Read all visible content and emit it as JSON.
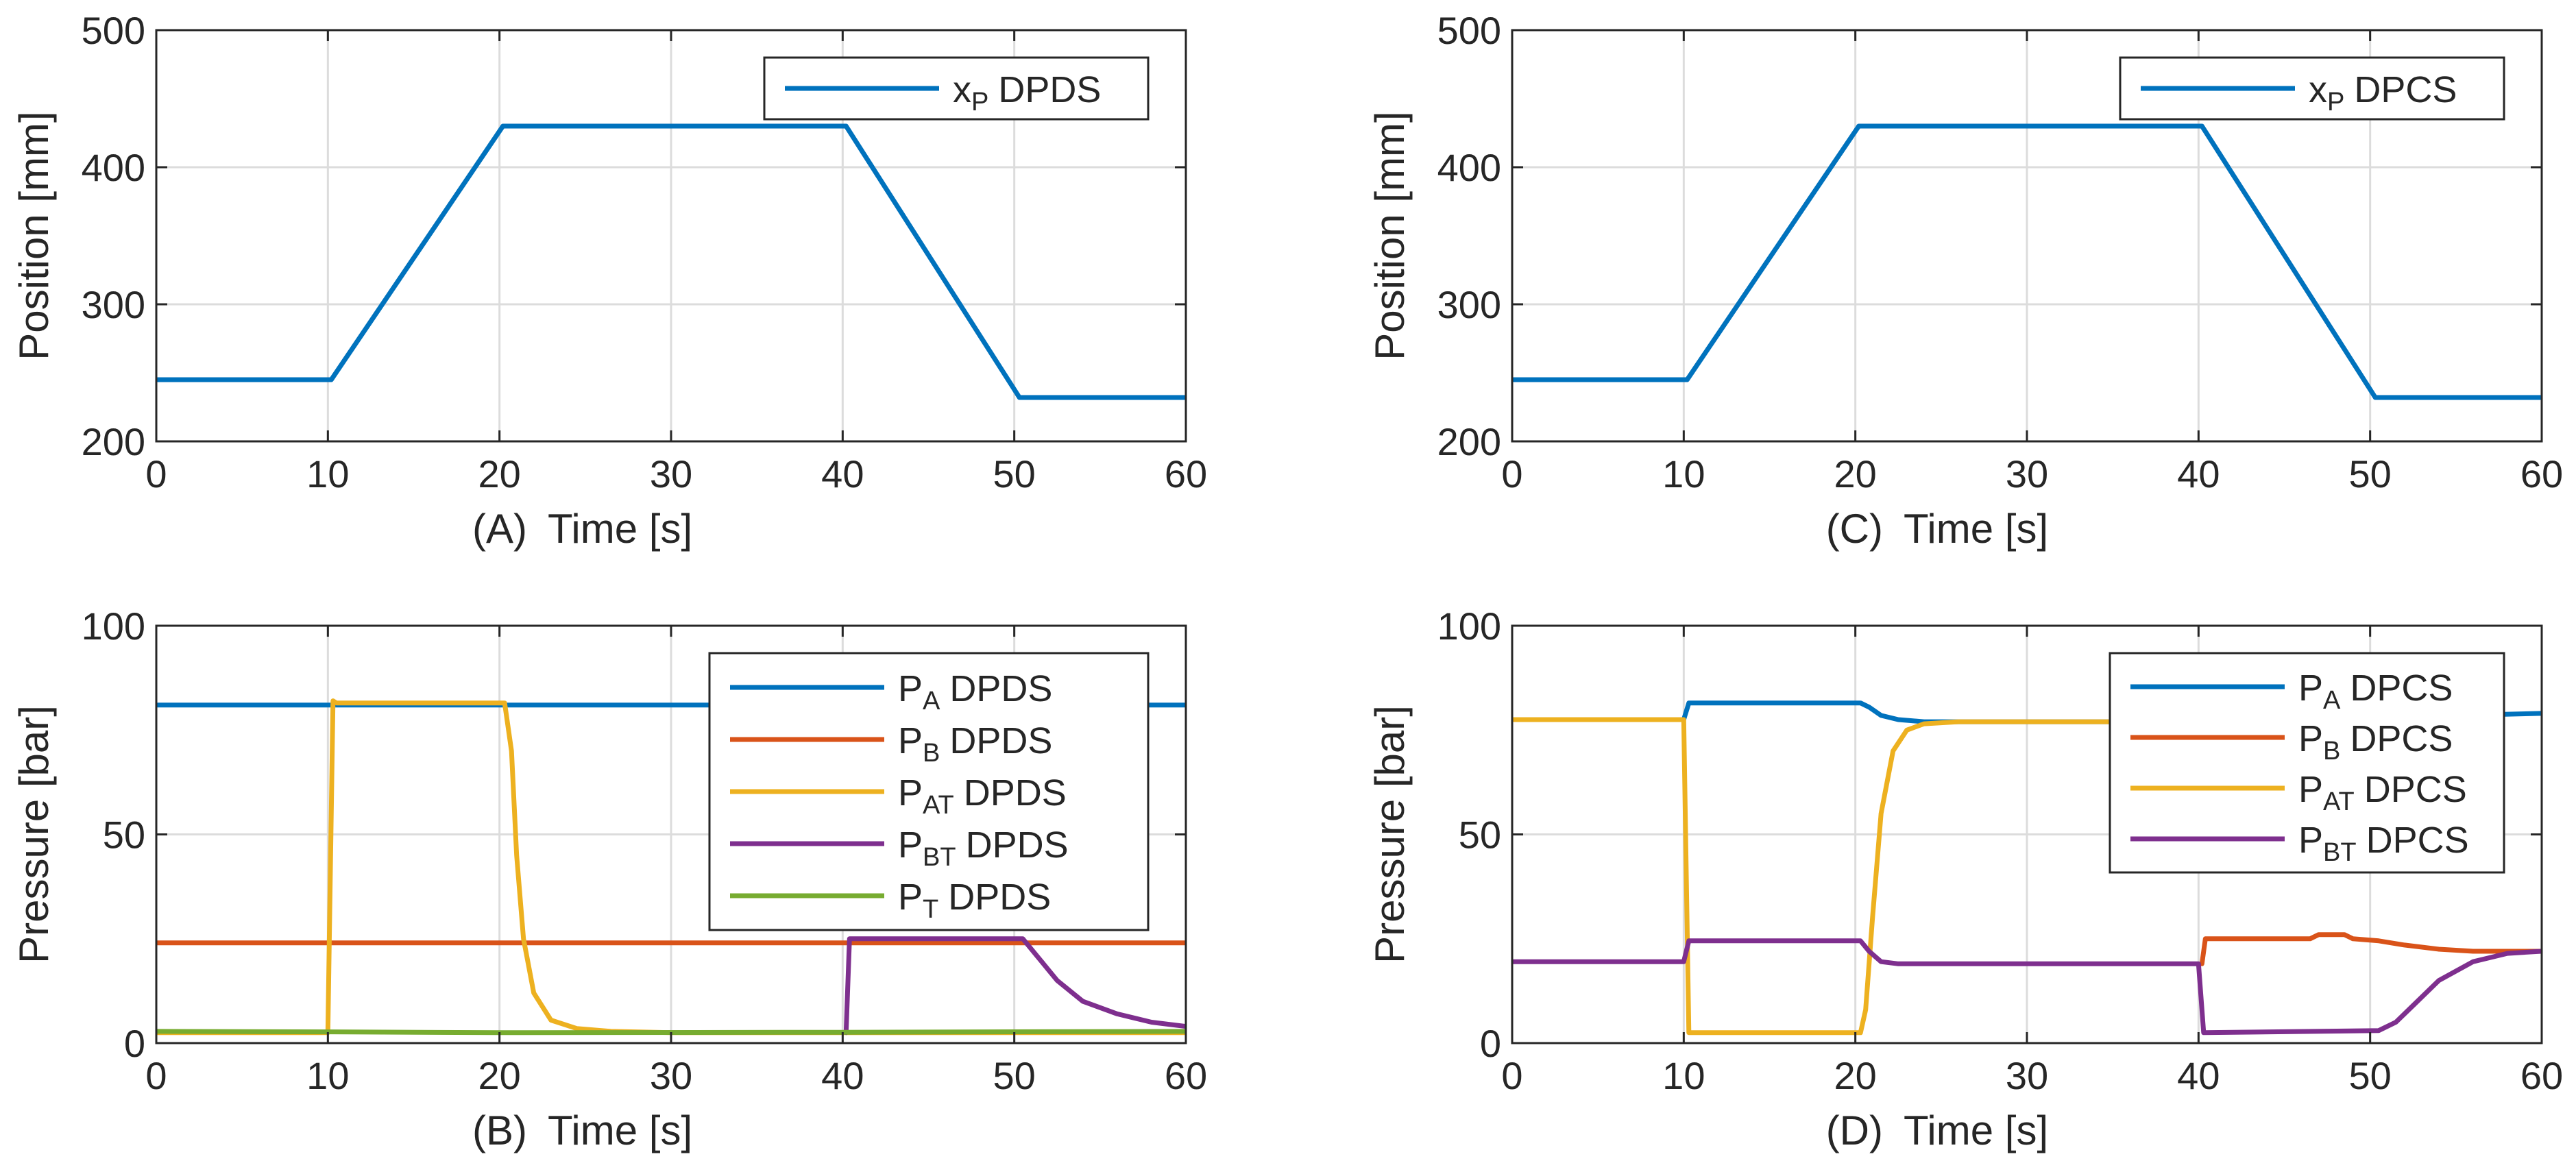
{
  "colors": {
    "blue": "#0072BD",
    "orange": "#D95319",
    "yellow": "#EDB120",
    "purple": "#7E2F8E",
    "green": "#77AC30",
    "grid": "#dcdcdc",
    "axis": "#262626"
  },
  "chart_data": [
    {
      "id": "A",
      "type": "line",
      "panel_label": "(A)",
      "xlabel": "Time [s]",
      "ylabel": "Position [mm]",
      "xlim": [
        0,
        60
      ],
      "ylim": [
        200,
        500
      ],
      "xticks": [
        0,
        10,
        20,
        30,
        40,
        50,
        60
      ],
      "yticks": [
        200,
        300,
        400,
        500
      ],
      "grid": true,
      "legend_position": "top-right",
      "series": [
        {
          "name": "x_P DPDS",
          "sym": "x",
          "sub": "P",
          "suffix": "DPDS",
          "color": "#0072BD",
          "x": [
            0,
            10.2,
            20.2,
            40.2,
            50.3,
            60
          ],
          "y": [
            245,
            245,
            430,
            430,
            232,
            232
          ]
        }
      ]
    },
    {
      "id": "B",
      "type": "line",
      "panel_label": "(B)",
      "xlabel": "Time [s]",
      "ylabel": "Pressure [bar]",
      "xlim": [
        0,
        60
      ],
      "ylim": [
        0,
        100
      ],
      "xticks": [
        0,
        10,
        20,
        30,
        40,
        50,
        60
      ],
      "yticks": [
        0,
        50,
        100
      ],
      "grid": true,
      "legend_position": "top-right",
      "series": [
        {
          "name": "P_A DPDS",
          "sym": "P",
          "sub": "A",
          "suffix": "DPDS",
          "color": "#0072BD",
          "x": [
            0,
            60
          ],
          "y": [
            81,
            81
          ]
        },
        {
          "name": "P_B DPDS",
          "sym": "P",
          "sub": "B",
          "suffix": "DPDS",
          "color": "#D95319",
          "x": [
            0,
            60
          ],
          "y": [
            24,
            24
          ]
        },
        {
          "name": "P_AT DPDS",
          "sym": "P",
          "sub": "AT",
          "suffix": "DPDS",
          "color": "#EDB120",
          "x": [
            0,
            10.0,
            10.3,
            10.5,
            20.3,
            20.7,
            21.0,
            21.4,
            22.0,
            23.0,
            24.5,
            26.5,
            30,
            40,
            60
          ],
          "y": [
            2.5,
            2.5,
            82,
            81.5,
            81.5,
            70,
            45,
            25,
            12,
            5.5,
            3.5,
            2.8,
            2.5,
            2.5,
            2.5
          ]
        },
        {
          "name": "P_BT DPDS",
          "sym": "P",
          "sub": "BT",
          "suffix": "DPDS",
          "color": "#7E2F8E",
          "x": [
            40.2,
            40.4,
            50.5,
            51.5,
            52.5,
            54,
            56,
            58,
            60
          ],
          "y": [
            2.5,
            25,
            25,
            20,
            15,
            10,
            7,
            5,
            4
          ]
        },
        {
          "name": "P_T DPDS",
          "sym": "P",
          "sub": "T",
          "suffix": "DPDS",
          "color": "#77AC30",
          "x": [
            0,
            10,
            20,
            40,
            60
          ],
          "y": [
            2.8,
            2.7,
            2.5,
            2.6,
            2.8
          ]
        }
      ]
    },
    {
      "id": "C",
      "type": "line",
      "panel_label": "(C)",
      "xlabel": "Time [s]",
      "ylabel": "Position [mm]",
      "xlim": [
        0,
        60
      ],
      "ylim": [
        200,
        500
      ],
      "xticks": [
        0,
        10,
        20,
        30,
        40,
        50,
        60
      ],
      "yticks": [
        200,
        300,
        400,
        500
      ],
      "grid": true,
      "legend_position": "top-right",
      "series": [
        {
          "name": "x_P DPCS",
          "sym": "x",
          "sub": "P",
          "suffix": "DPCS",
          "color": "#0072BD",
          "x": [
            0,
            10.2,
            20.2,
            40.2,
            50.3,
            60
          ],
          "y": [
            245,
            245,
            430,
            430,
            232,
            232
          ]
        }
      ]
    },
    {
      "id": "D",
      "type": "line",
      "panel_label": "(D)",
      "xlabel": "Time [s]",
      "ylabel": "Pressure [bar]",
      "xlim": [
        0,
        60
      ],
      "ylim": [
        0,
        100
      ],
      "xticks": [
        0,
        10,
        20,
        30,
        40,
        50,
        60
      ],
      "yticks": [
        0,
        50,
        100
      ],
      "grid": true,
      "legend_position": "top-right",
      "series": [
        {
          "name": "P_A DPCS",
          "sym": "P",
          "sub": "A",
          "suffix": "DPCS",
          "color": "#0072BD",
          "x": [
            0,
            10.0,
            10.3,
            20.3,
            20.8,
            21.5,
            22.5,
            24,
            40,
            60
          ],
          "y": [
            77.5,
            77.5,
            81.5,
            81.5,
            80.5,
            78.5,
            77.5,
            77,
            77,
            79
          ]
        },
        {
          "name": "P_B DPCS",
          "sym": "P",
          "sub": "B",
          "suffix": "DPCS",
          "color": "#D95319",
          "x": [
            40.2,
            40.4,
            46.5,
            47,
            48.5,
            49,
            50.5,
            52,
            54,
            56,
            60
          ],
          "y": [
            19,
            25,
            25,
            26,
            26,
            25,
            24.5,
            23.5,
            22.5,
            22,
            22
          ]
        },
        {
          "name": "P_AT DPCS",
          "sym": "P",
          "sub": "AT",
          "suffix": "DPCS",
          "color": "#EDB120",
          "x": [
            0,
            10.0,
            10.3,
            20.3,
            20.6,
            21.0,
            21.5,
            22.2,
            23.0,
            24.0,
            26,
            40
          ],
          "y": [
            77.5,
            77.5,
            2.5,
            2.5,
            8,
            30,
            55,
            70,
            75,
            76.5,
            77,
            77
          ]
        },
        {
          "name": "P_BT DPCS",
          "sym": "P",
          "sub": "BT",
          "suffix": "DPCS",
          "color": "#7E2F8E",
          "x": [
            0,
            10.0,
            10.3,
            20.3,
            20.8,
            21.5,
            22.5,
            40.0,
            40.3,
            50.5,
            51.5,
            52.5,
            54,
            56,
            58,
            60
          ],
          "y": [
            19.5,
            19.5,
            24.5,
            24.5,
            22,
            19.5,
            19,
            19,
            2.5,
            3,
            5,
            9,
            15,
            19.5,
            21.5,
            22
          ]
        }
      ]
    }
  ]
}
